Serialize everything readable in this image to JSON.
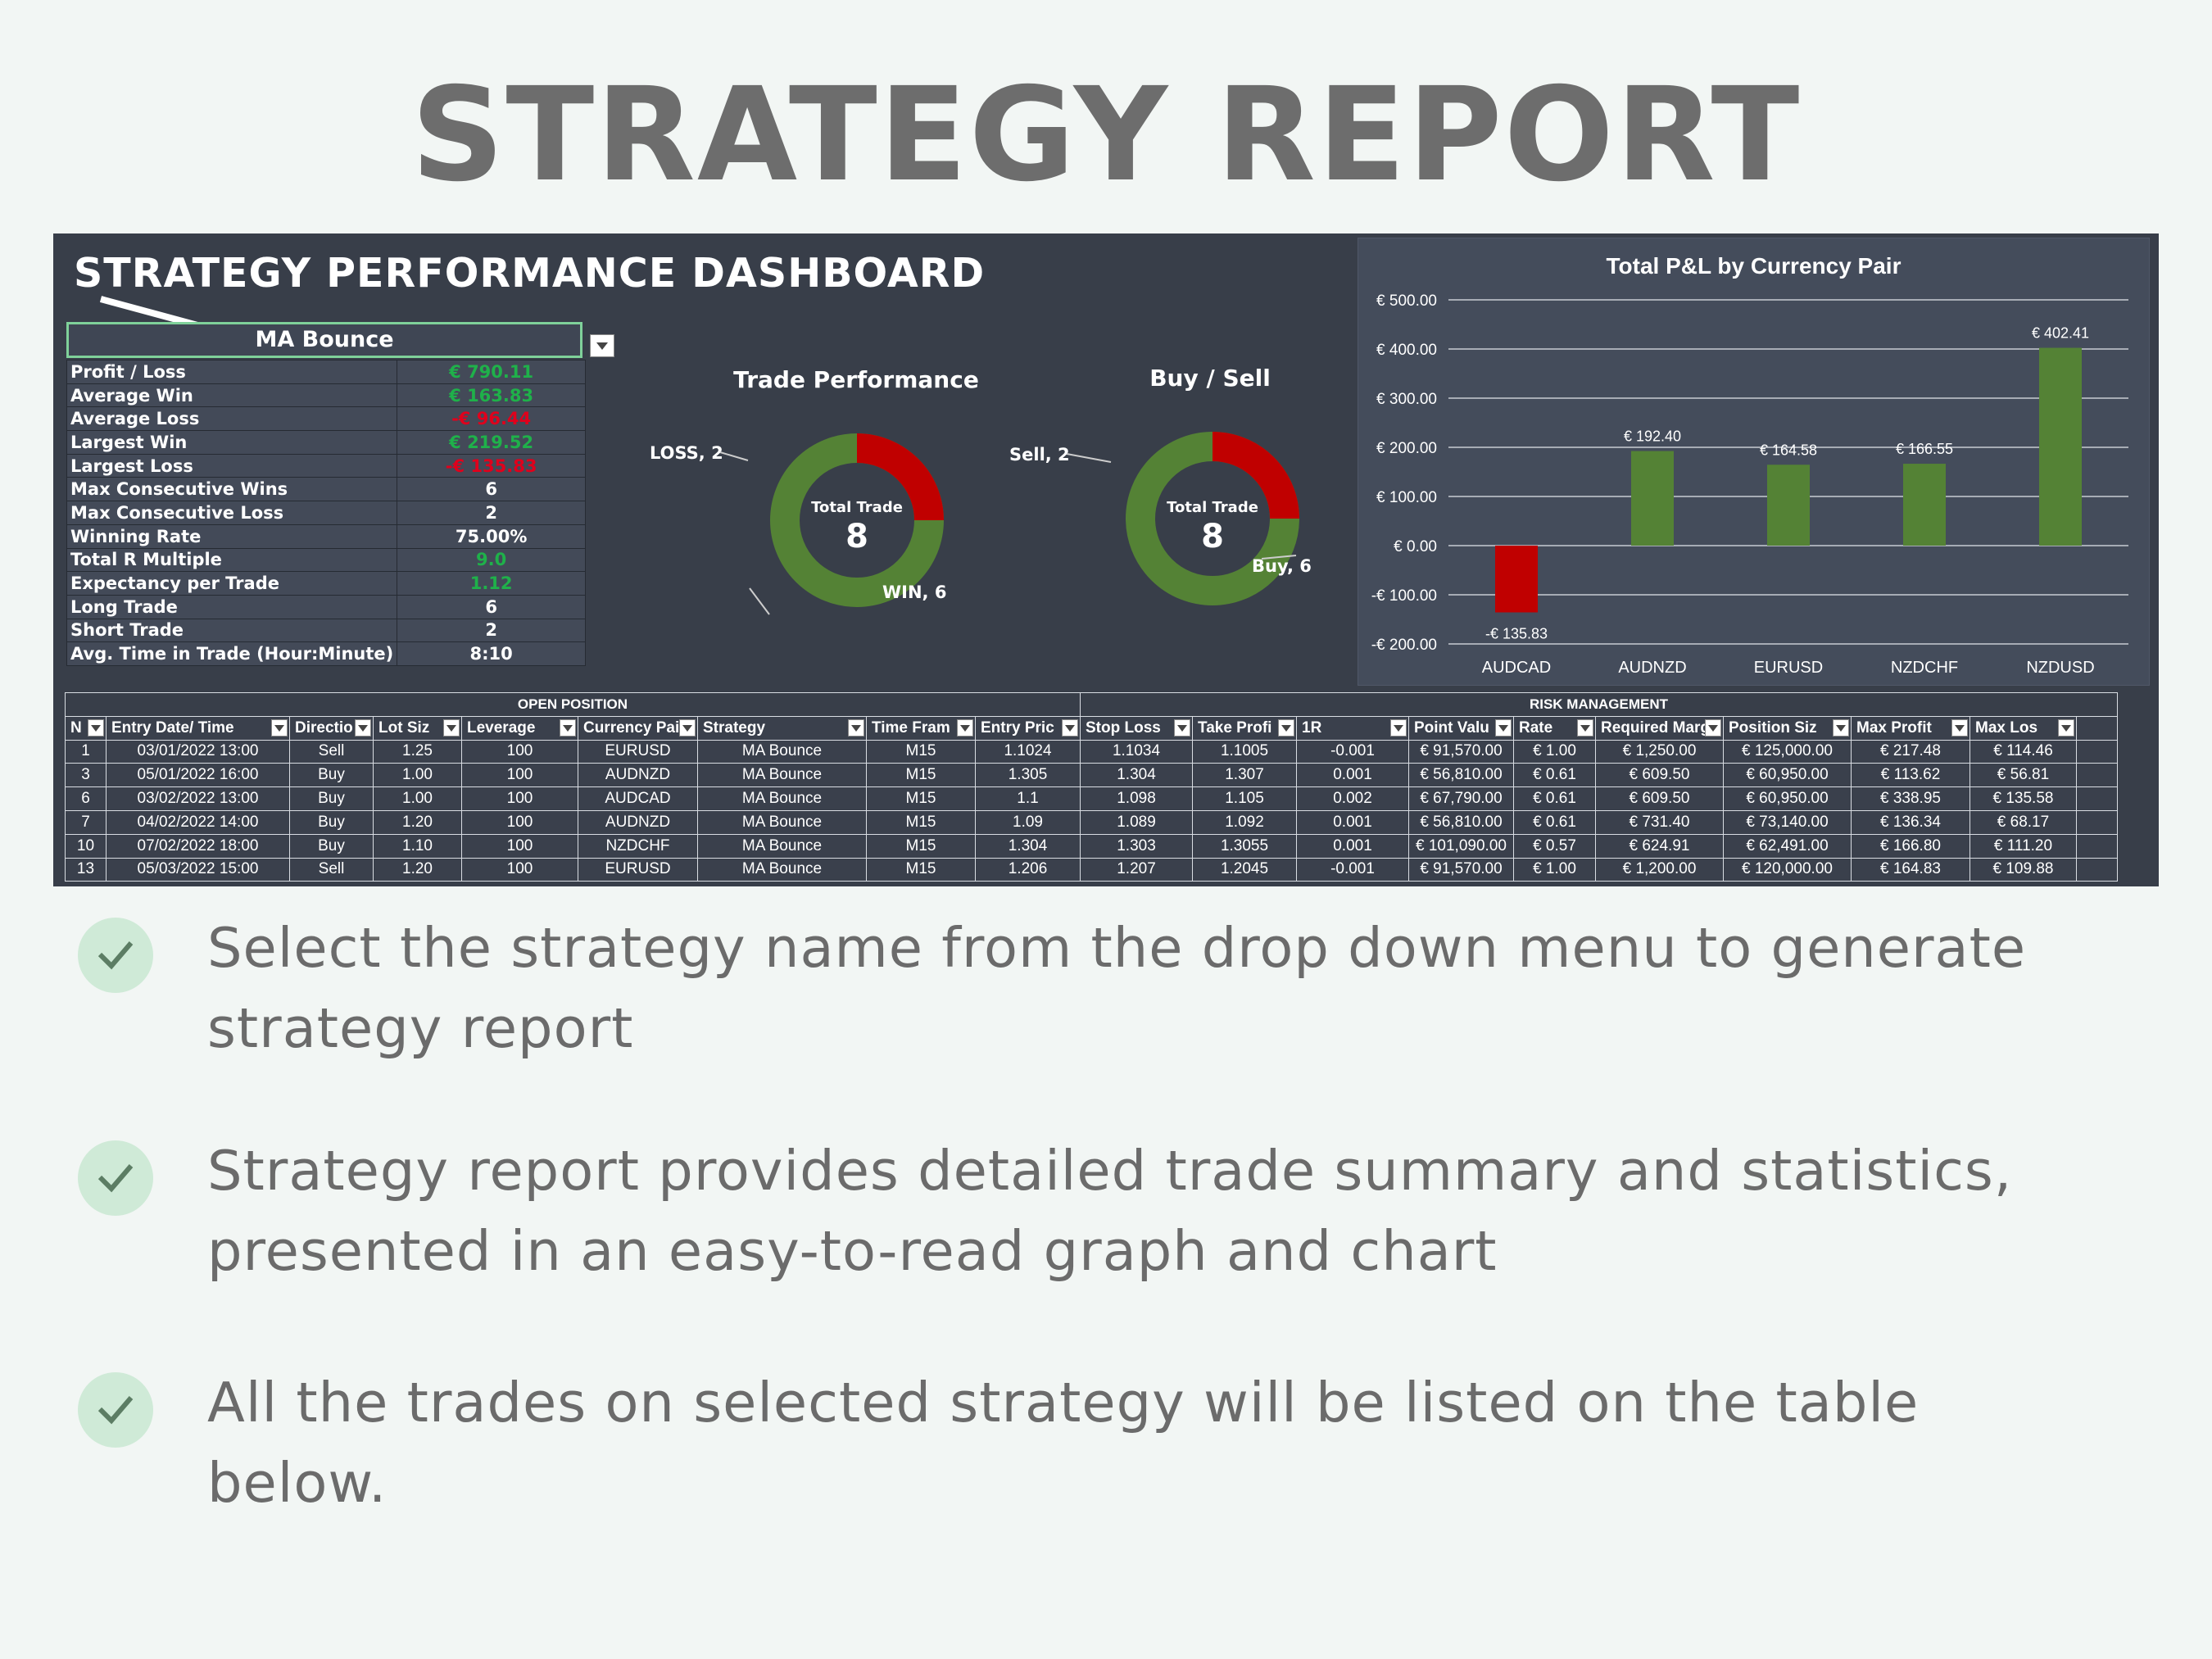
{
  "page": {
    "title": "STRATEGY REPORT"
  },
  "dashboard": {
    "title": "STRATEGY PERFORMANCE DASHBOARD",
    "selected_strategy": "MA Bounce",
    "stats": [
      {
        "label": "Profit / Loss",
        "value": "€ 790.11",
        "tone": "pos"
      },
      {
        "label": "Average Win",
        "value": "€ 163.83",
        "tone": "pos"
      },
      {
        "label": "Average Loss",
        "value": "-€ 96.44",
        "tone": "neg"
      },
      {
        "label": "Largest Win",
        "value": "€ 219.52",
        "tone": "pos"
      },
      {
        "label": "Largest Loss",
        "value": "-€ 135.83",
        "tone": "neg"
      },
      {
        "label": "Max Consecutive Wins",
        "value": "6",
        "tone": ""
      },
      {
        "label": "Max Consecutive Loss",
        "value": "2",
        "tone": ""
      },
      {
        "label": "Winning Rate",
        "value": "75.00%",
        "tone": ""
      },
      {
        "label": "Total R Multiple",
        "value": "9.0",
        "tone": "pos"
      },
      {
        "label": "Expectancy per Trade",
        "value": "1.12",
        "tone": "pos"
      },
      {
        "label": "Long Trade",
        "value": "6",
        "tone": ""
      },
      {
        "label": "Short Trade",
        "value": "2",
        "tone": ""
      },
      {
        "label": "Avg. Time in Trade (Hour:Minute)",
        "value": "8:10",
        "tone": ""
      }
    ],
    "trade_performance": {
      "title": "Trade Performance",
      "center_label": "Total Trade",
      "center_value": "8",
      "loss_label": "LOSS, 2",
      "win_label": "WIN, 6",
      "loss": 2,
      "win": 6,
      "colors": {
        "loss": "#c00000",
        "win": "#548235"
      }
    },
    "buy_sell": {
      "title": "Buy / Sell",
      "center_label": "Total Trade",
      "center_value": "8",
      "sell_label": "Sell, 2",
      "buy_label": "Buy, 6",
      "sell": 2,
      "buy": 6,
      "colors": {
        "sell": "#c00000",
        "buy": "#548235"
      }
    }
  },
  "chart_data": {
    "type": "bar",
    "title": "Total P&L by Currency Pair",
    "categories": [
      "AUDCAD",
      "AUDNZD",
      "EURUSD",
      "NZDCHF",
      "NZDUSD"
    ],
    "values": [
      -135.83,
      192.4,
      164.58,
      166.55,
      402.41
    ],
    "data_labels": [
      "-€ 135.83",
      "€ 192.40",
      "€ 164.58",
      "€ 166.55",
      "€ 402.41"
    ],
    "ylim": [
      -200,
      500
    ],
    "y_ticks": [
      500,
      400,
      300,
      200,
      100,
      0,
      -100,
      -200
    ],
    "y_tick_labels": [
      "€ 500.00",
      "€ 400.00",
      "€ 300.00",
      "€ 200.00",
      "€ 100.00",
      "€ 0.00",
      "-€ 100.00",
      "-€ 200.00"
    ],
    "grid": true,
    "colors": {
      "positive": "#548235",
      "negative": "#c00000"
    }
  },
  "table": {
    "groups": [
      "OPEN POSITION",
      "RISK MANAGEMENT"
    ],
    "columns": [
      "N",
      "Entry Date/ Time",
      "Directio",
      "Lot Siz",
      "Leverage",
      "Currency Pai",
      "Strategy",
      "Time Fram",
      "Entry Pric",
      "Stop Loss",
      "Take Profi",
      "1R",
      "Point Valu",
      "Rate",
      "Required Margi",
      "Position Siz",
      "Max Profit",
      "Max Los"
    ],
    "rows": [
      [
        "1",
        "03/01/2022 13:00",
        "Sell",
        "1.25",
        "100",
        "EURUSD",
        "MA Bounce",
        "M15",
        "1.1024",
        "1.1034",
        "1.1005",
        "-0.001",
        "€ 91,570.00",
        "€ 1.00",
        "€ 1,250.00",
        "€ 125,000.00",
        "€ 217.48",
        "€ 114.46"
      ],
      [
        "3",
        "05/01/2022 16:00",
        "Buy",
        "1.00",
        "100",
        "AUDNZD",
        "MA Bounce",
        "M15",
        "1.305",
        "1.304",
        "1.307",
        "0.001",
        "€ 56,810.00",
        "€ 0.61",
        "€ 609.50",
        "€ 60,950.00",
        "€ 113.62",
        "€ 56.81"
      ],
      [
        "6",
        "03/02/2022 13:00",
        "Buy",
        "1.00",
        "100",
        "AUDCAD",
        "MA Bounce",
        "M15",
        "1.1",
        "1.098",
        "1.105",
        "0.002",
        "€ 67,790.00",
        "€ 0.61",
        "€ 609.50",
        "€ 60,950.00",
        "€ 338.95",
        "€ 135.58"
      ],
      [
        "7",
        "04/02/2022 14:00",
        "Buy",
        "1.20",
        "100",
        "AUDNZD",
        "MA Bounce",
        "M15",
        "1.09",
        "1.089",
        "1.092",
        "0.001",
        "€ 56,810.00",
        "€ 0.61",
        "€ 731.40",
        "€ 73,140.00",
        "€ 136.34",
        "€ 68.17"
      ],
      [
        "10",
        "07/02/2022 18:00",
        "Buy",
        "1.10",
        "100",
        "NZDCHF",
        "MA Bounce",
        "M15",
        "1.304",
        "1.303",
        "1.3055",
        "0.001",
        "€ 101,090.00",
        "€ 0.57",
        "€ 624.91",
        "€ 62,491.00",
        "€ 166.80",
        "€ 111.20"
      ],
      [
        "13",
        "05/03/2022 15:00",
        "Sell",
        "1.20",
        "100",
        "EURUSD",
        "MA Bounce",
        "M15",
        "1.206",
        "1.207",
        "1.2045",
        "-0.001",
        "€ 91,570.00",
        "€ 1.00",
        "€ 1,200.00",
        "€ 120,000.00",
        "€ 164.83",
        "€ 109.88"
      ]
    ]
  },
  "bullets": [
    {
      "text": "Select the strategy name from the drop down menu to generate strategy report"
    },
    {
      "text": "Strategy report provides detailed trade summary and statistics, presented in an easy-to-read graph and chart"
    },
    {
      "text": "All the trades on selected strategy will be listed on the table below."
    }
  ]
}
